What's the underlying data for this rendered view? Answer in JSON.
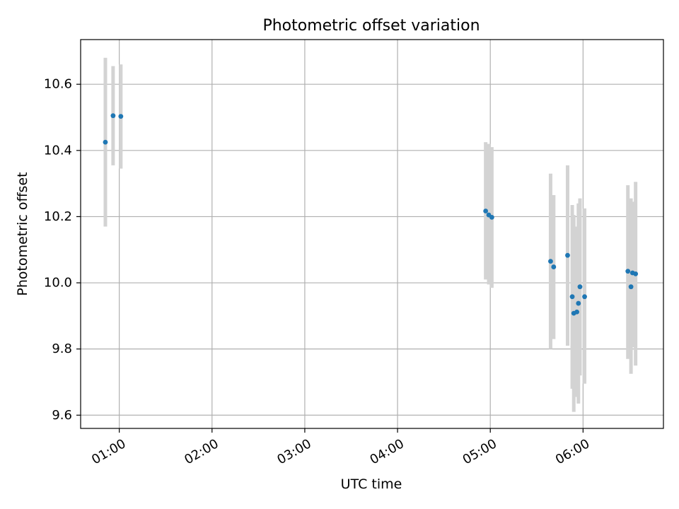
{
  "chart_data": {
    "type": "scatter",
    "title": "Photometric offset variation",
    "xlabel": "UTC time",
    "ylabel": "Photometric offset",
    "xlim": [
      "00:35",
      "06:52"
    ],
    "ylim": [
      9.56,
      10.735
    ],
    "grid": true,
    "x_ticks": [
      "01:00",
      "02:00",
      "03:00",
      "04:00",
      "05:00",
      "06:00"
    ],
    "y_ticks": [
      "9.6",
      "9.8",
      "10.0",
      "10.2",
      "10.4",
      "10.6"
    ],
    "colors": {
      "marker": "#1f77b4",
      "errorbar": "#d3d3d3",
      "grid": "#b0b0b0"
    },
    "points": [
      {
        "time": "00:51",
        "value": 10.425,
        "err_low": 10.17,
        "err_high": 10.68
      },
      {
        "time": "00:56",
        "value": 10.505,
        "err_low": 10.355,
        "err_high": 10.655
      },
      {
        "time": "01:01",
        "value": 10.503,
        "err_low": 10.345,
        "err_high": 10.66
      },
      {
        "time": "04:57",
        "value": 10.217,
        "err_low": 10.01,
        "err_high": 10.425
      },
      {
        "time": "04:59",
        "value": 10.205,
        "err_low": 9.995,
        "err_high": 10.42
      },
      {
        "time": "05:01",
        "value": 10.198,
        "err_low": 9.985,
        "err_high": 10.41
      },
      {
        "time": "05:39",
        "value": 10.065,
        "err_low": 9.8,
        "err_high": 10.33
      },
      {
        "time": "05:41",
        "value": 10.048,
        "err_low": 9.83,
        "err_high": 10.265
      },
      {
        "time": "05:50",
        "value": 10.083,
        "err_low": 9.81,
        "err_high": 10.355
      },
      {
        "time": "05:53",
        "value": 9.958,
        "err_low": 9.68,
        "err_high": 10.235
      },
      {
        "time": "05:54",
        "value": 9.908,
        "err_low": 9.61,
        "err_high": 10.205
      },
      {
        "time": "05:56",
        "value": 9.912,
        "err_low": 9.655,
        "err_high": 10.17
      },
      {
        "time": "05:57",
        "value": 9.938,
        "err_low": 9.635,
        "err_high": 10.24
      },
      {
        "time": "05:58",
        "value": 9.988,
        "err_low": 9.72,
        "err_high": 10.255
      },
      {
        "time": "06:01",
        "value": 9.958,
        "err_low": 9.695,
        "err_high": 10.225
      },
      {
        "time": "06:29",
        "value": 10.035,
        "err_low": 9.77,
        "err_high": 10.295
      },
      {
        "time": "06:31",
        "value": 9.988,
        "err_low": 9.725,
        "err_high": 10.255
      },
      {
        "time": "06:32",
        "value": 10.03,
        "err_low": 9.805,
        "err_high": 10.245
      },
      {
        "time": "06:34",
        "value": 10.027,
        "err_low": 9.75,
        "err_high": 10.305
      }
    ]
  }
}
